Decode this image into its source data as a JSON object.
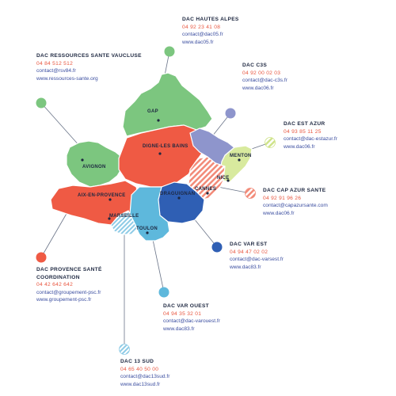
{
  "colors": {
    "hautes_alpes": "#7cc67f",
    "vaucluse": "#7cc67f",
    "c3s": "#8e95cc",
    "est_azur": "#d8ea9e",
    "cap_azur": "#f28a78",
    "var_est": "#2f5fb4",
    "var_ouest": "#5eb8dc",
    "sud_13": "#9ed3ea",
    "provence": "#ef5a44",
    "digne": "#ef5a44"
  },
  "cities": {
    "gap": "GAP",
    "digne": "DIGNE-LES BAINS",
    "avignon": "AVIGNON",
    "aix": "AIX-EN-PROVENCE",
    "marseille": "MARSEILLE",
    "toulon": "TOULON",
    "draguignan": "DRAGUIGNAN",
    "cannes": "CANNES",
    "nice": "NICE",
    "menton": "MENTON"
  },
  "dacs": {
    "hautes_alpes": {
      "name": "DAC HAUTES ALPES",
      "phone": "04 92 23 41 08",
      "email": "contact@dac05.fr",
      "web": "www.dac05.fr"
    },
    "vaucluse": {
      "name": "DAC RESSOURCES SANTE VAUCLUSE",
      "phone": "04 84 512 512",
      "email": "contact@rsv84.fr",
      "web": "www.ressources-sante.org"
    },
    "c3s": {
      "name": "DAC C3S",
      "phone": "04 92 00 02 03",
      "email": "contact@dac-c3s.fr",
      "web": "www.dac06.fr"
    },
    "est_azur": {
      "name": "DAC EST AZUR",
      "phone": "04 93 85 11 25",
      "email": "contact@dac-estazur.fr",
      "web": "www.dac06.fr"
    },
    "cap_azur": {
      "name": "DAC CAP AZUR SANTE",
      "phone": "04 92 91 96 26",
      "email": "contact@capazursante.com",
      "web": "www.dac06.fr"
    },
    "var_est": {
      "name": "DAC VAR EST",
      "phone": "04 94 47 02 02",
      "email": "contact@dac-varsest.fr",
      "web": "www.dac83.fr"
    },
    "provence": {
      "name_line1": "DAC PROVENCE SANTÉ",
      "name_line2": "COORDINATION",
      "phone": "04 42 642 642",
      "email": "contact@groupement-psc.fr",
      "web": "www.groupement-psc.fr"
    },
    "var_ouest": {
      "name": "DAC VAR OUEST",
      "phone": "04 94 35 32 01",
      "email": "contact@dac-varouest.fr",
      "web": "www.dac83.fr"
    },
    "sud_13": {
      "name": "DAC 13 SUD",
      "phone": "04 65 40 50 00",
      "email": "contact@dac13sud.fr",
      "web": "www.dac13sud.fr"
    }
  }
}
